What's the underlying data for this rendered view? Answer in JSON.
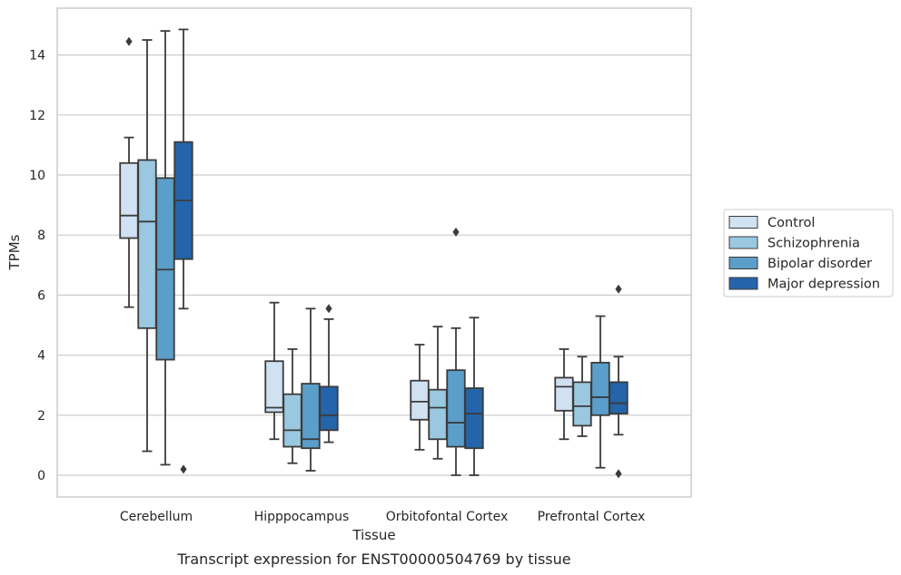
{
  "chart_data": {
    "type": "box",
    "xlabel": "Tissue",
    "ylabel": "TPMs",
    "caption": "Transcript expression for ENST00000504769 by tissue",
    "ylim": [
      -0.7,
      15.5
    ],
    "yticks": [
      0,
      2,
      4,
      6,
      8,
      10,
      12,
      14
    ],
    "grid": true,
    "legend_position": "right",
    "categories": [
      "Cerebellum",
      "Hipppocampus",
      "Orbitofontal Cortex",
      "Prefrontal Cortex"
    ],
    "series": [
      {
        "name": "Control",
        "color": "#d0e1f2",
        "boxes": [
          {
            "whisker_low": 5.6,
            "q1": 7.9,
            "median": 8.65,
            "q3": 10.4,
            "whisker_high": 11.25,
            "outliers": [
              14.45
            ]
          },
          {
            "whisker_low": 1.2,
            "q1": 2.1,
            "median": 2.25,
            "q3": 3.8,
            "whisker_high": 5.75,
            "outliers": []
          },
          {
            "whisker_low": 0.85,
            "q1": 1.85,
            "median": 2.45,
            "q3": 3.15,
            "whisker_high": 4.35,
            "outliers": []
          },
          {
            "whisker_low": 1.2,
            "q1": 2.15,
            "median": 2.95,
            "q3": 3.25,
            "whisker_high": 4.2,
            "outliers": []
          }
        ]
      },
      {
        "name": "Schizophrenia",
        "color": "#9ac8e0",
        "boxes": [
          {
            "whisker_low": 0.8,
            "q1": 4.9,
            "median": 8.45,
            "q3": 10.5,
            "whisker_high": 14.5,
            "outliers": []
          },
          {
            "whisker_low": 0.4,
            "q1": 0.95,
            "median": 1.5,
            "q3": 2.7,
            "whisker_high": 4.2,
            "outliers": []
          },
          {
            "whisker_low": 0.55,
            "q1": 1.2,
            "median": 2.25,
            "q3": 2.85,
            "whisker_high": 4.95,
            "outliers": []
          },
          {
            "whisker_low": 1.3,
            "q1": 1.65,
            "median": 2.3,
            "q3": 3.1,
            "whisker_high": 3.95,
            "outliers": []
          }
        ]
      },
      {
        "name": "Bipolar disorder",
        "color": "#5a9ec9",
        "boxes": [
          {
            "whisker_low": 0.35,
            "q1": 3.85,
            "median": 6.85,
            "q3": 9.9,
            "whisker_high": 14.8,
            "outliers": []
          },
          {
            "whisker_low": 0.15,
            "q1": 0.9,
            "median": 1.2,
            "q3": 3.05,
            "whisker_high": 5.55,
            "outliers": []
          },
          {
            "whisker_low": 0.0,
            "q1": 0.95,
            "median": 1.75,
            "q3": 3.5,
            "whisker_high": 4.9,
            "outliers": [
              8.1
            ]
          },
          {
            "whisker_low": 0.25,
            "q1": 2.0,
            "median": 2.6,
            "q3": 3.75,
            "whisker_high": 5.3,
            "outliers": []
          }
        ]
      },
      {
        "name": "Major depression",
        "color": "#2464aa",
        "boxes": [
          {
            "whisker_low": 5.55,
            "q1": 7.2,
            "median": 9.15,
            "q3": 11.1,
            "whisker_high": 14.85,
            "outliers": [
              0.2
            ]
          },
          {
            "whisker_low": 1.1,
            "q1": 1.5,
            "median": 2.0,
            "q3": 2.95,
            "whisker_high": 5.2,
            "outliers": [
              5.55
            ]
          },
          {
            "whisker_low": 0.0,
            "q1": 0.9,
            "median": 2.05,
            "q3": 2.9,
            "whisker_high": 5.25,
            "outliers": []
          },
          {
            "whisker_low": 1.35,
            "q1": 2.05,
            "median": 2.4,
            "q3": 3.1,
            "whisker_high": 3.95,
            "outliers": [
              6.2,
              0.05
            ]
          }
        ]
      }
    ]
  }
}
